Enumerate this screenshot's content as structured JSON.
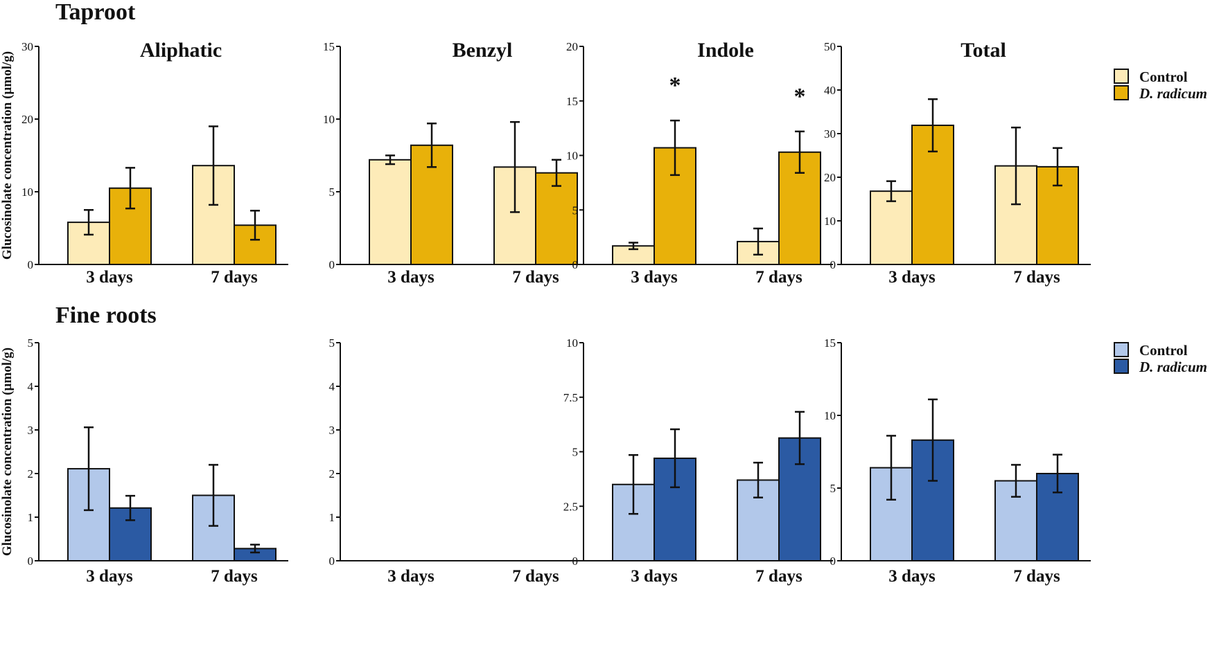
{
  "rows": [
    {
      "key": "taproot",
      "title": "Taproot"
    },
    {
      "key": "fine",
      "title": "Fine roots"
    }
  ],
  "ylabel": "Glucosinolate concentration (µmol/g)",
  "legends": [
    {
      "row": "taproot",
      "control": "Control",
      "treatment": "D. radicum"
    },
    {
      "row": "fine",
      "control": "Control",
      "treatment": "D. radicum"
    }
  ],
  "colors": {
    "taproot_control": "#fdebb8",
    "taproot_treatment": "#e8b10a",
    "fine_control": "#b2c8ea",
    "fine_treatment": "#2b5aa3",
    "stroke": "#111111"
  },
  "chart_data": [
    {
      "type": "bar",
      "row": "taproot",
      "col": 0,
      "title": "Aliphatic",
      "categories": [
        "3 days",
        "7 days"
      ],
      "ylim": [
        0,
        30
      ],
      "yticks": [
        "0",
        "10",
        "20",
        "30"
      ],
      "ytick_values": [
        0,
        10,
        20,
        30
      ],
      "series": [
        {
          "name": "Control",
          "values": [
            5.8,
            13.6
          ],
          "err": [
            1.7,
            5.4
          ]
        },
        {
          "name": "D. radicum",
          "values": [
            10.5,
            5.4
          ],
          "err": [
            2.8,
            2.0
          ]
        }
      ],
      "sig": [
        "",
        ""
      ]
    },
    {
      "type": "bar",
      "row": "taproot",
      "col": 1,
      "title": "Benzyl",
      "categories": [
        "3 days",
        "7 days"
      ],
      "ylim": [
        0,
        15
      ],
      "yticks": [
        "0",
        "5",
        "10",
        "15"
      ],
      "ytick_values": [
        0,
        5,
        10,
        15
      ],
      "series": [
        {
          "name": "Control",
          "values": [
            7.2,
            6.7
          ],
          "err": [
            0.3,
            3.1
          ]
        },
        {
          "name": "D. radicum",
          "values": [
            8.2,
            6.3
          ],
          "err": [
            1.5,
            0.9
          ]
        }
      ],
      "sig": [
        "",
        ""
      ]
    },
    {
      "type": "bar",
      "row": "taproot",
      "col": 2,
      "title": "Indole",
      "categories": [
        "3 days",
        "7 days"
      ],
      "ylim": [
        0,
        20
      ],
      "yticks": [
        "0",
        "5",
        "10",
        "15",
        "20"
      ],
      "ytick_values": [
        0,
        5,
        10,
        15,
        20
      ],
      "series": [
        {
          "name": "Control",
          "values": [
            1.7,
            2.1
          ],
          "err": [
            0.3,
            1.2
          ]
        },
        {
          "name": "D. radicum",
          "values": [
            10.7,
            10.3
          ],
          "err": [
            2.5,
            1.9
          ]
        }
      ],
      "sig": [
        "*",
        "*"
      ]
    },
    {
      "type": "bar",
      "row": "taproot",
      "col": 3,
      "title": "Total",
      "categories": [
        "3 days",
        "7 days"
      ],
      "ylim": [
        0,
        50
      ],
      "yticks": [
        "0",
        "10",
        "20",
        "30",
        "40",
        "50"
      ],
      "ytick_values": [
        0,
        10,
        20,
        30,
        40,
        50
      ],
      "series": [
        {
          "name": "Control",
          "values": [
            16.8,
            22.6
          ],
          "err": [
            2.3,
            8.8
          ]
        },
        {
          "name": "D. radicum",
          "values": [
            31.9,
            22.4
          ],
          "err": [
            6.0,
            4.3
          ]
        }
      ],
      "sig": [
        "",
        ""
      ]
    },
    {
      "type": "bar",
      "row": "fine",
      "col": 0,
      "title": "",
      "categories": [
        "3 days",
        "7 days"
      ],
      "ylim": [
        0,
        5
      ],
      "yticks": [
        "0",
        "1",
        "2",
        "3",
        "4",
        "5"
      ],
      "ytick_values": [
        0,
        1,
        2,
        3,
        4,
        5
      ],
      "series": [
        {
          "name": "Control",
          "values": [
            2.11,
            1.5
          ],
          "err": [
            0.95,
            0.7
          ]
        },
        {
          "name": "D. radicum",
          "values": [
            1.21,
            0.28
          ],
          "err": [
            0.28,
            0.09
          ]
        }
      ],
      "sig": [
        "",
        ""
      ]
    },
    {
      "type": "bar",
      "row": "fine",
      "col": 1,
      "title": "",
      "categories": [
        "3 days",
        "7 days"
      ],
      "ylim": [
        0,
        5
      ],
      "yticks": [
        "0",
        "1",
        "2",
        "3",
        "4",
        "5"
      ],
      "ytick_values": [
        0,
        1,
        2,
        3,
        4,
        5
      ],
      "series": [
        {
          "name": "Control",
          "values": [
            0,
            0
          ],
          "err": [
            0,
            0
          ]
        },
        {
          "name": "D. radicum",
          "values": [
            0,
            0
          ],
          "err": [
            0,
            0
          ]
        }
      ],
      "sig": [
        "",
        ""
      ]
    },
    {
      "type": "bar",
      "row": "fine",
      "col": 2,
      "title": "",
      "categories": [
        "3 days",
        "7 days"
      ],
      "ylim": [
        0,
        10
      ],
      "yticks": [
        "0",
        "2.5",
        "5",
        "7.5",
        "10"
      ],
      "ytick_values": [
        0,
        2.5,
        5,
        7.5,
        10
      ],
      "series": [
        {
          "name": "Control",
          "values": [
            3.5,
            3.7
          ],
          "err": [
            1.35,
            0.8
          ]
        },
        {
          "name": "D. radicum",
          "values": [
            4.7,
            5.63
          ],
          "err": [
            1.33,
            1.2
          ]
        }
      ],
      "sig": [
        "",
        ""
      ]
    },
    {
      "type": "bar",
      "row": "fine",
      "col": 3,
      "title": "",
      "categories": [
        "3 days",
        "7 days"
      ],
      "ylim": [
        0,
        15
      ],
      "yticks": [
        "0",
        "5",
        "10",
        "15"
      ],
      "ytick_values": [
        0,
        5,
        10,
        15
      ],
      "series": [
        {
          "name": "Control",
          "values": [
            6.4,
            5.5
          ],
          "err": [
            2.2,
            1.1
          ]
        },
        {
          "name": "D. radicum",
          "values": [
            8.3,
            6.0
          ],
          "err": [
            2.8,
            1.3
          ]
        }
      ],
      "sig": [
        "",
        ""
      ]
    }
  ]
}
